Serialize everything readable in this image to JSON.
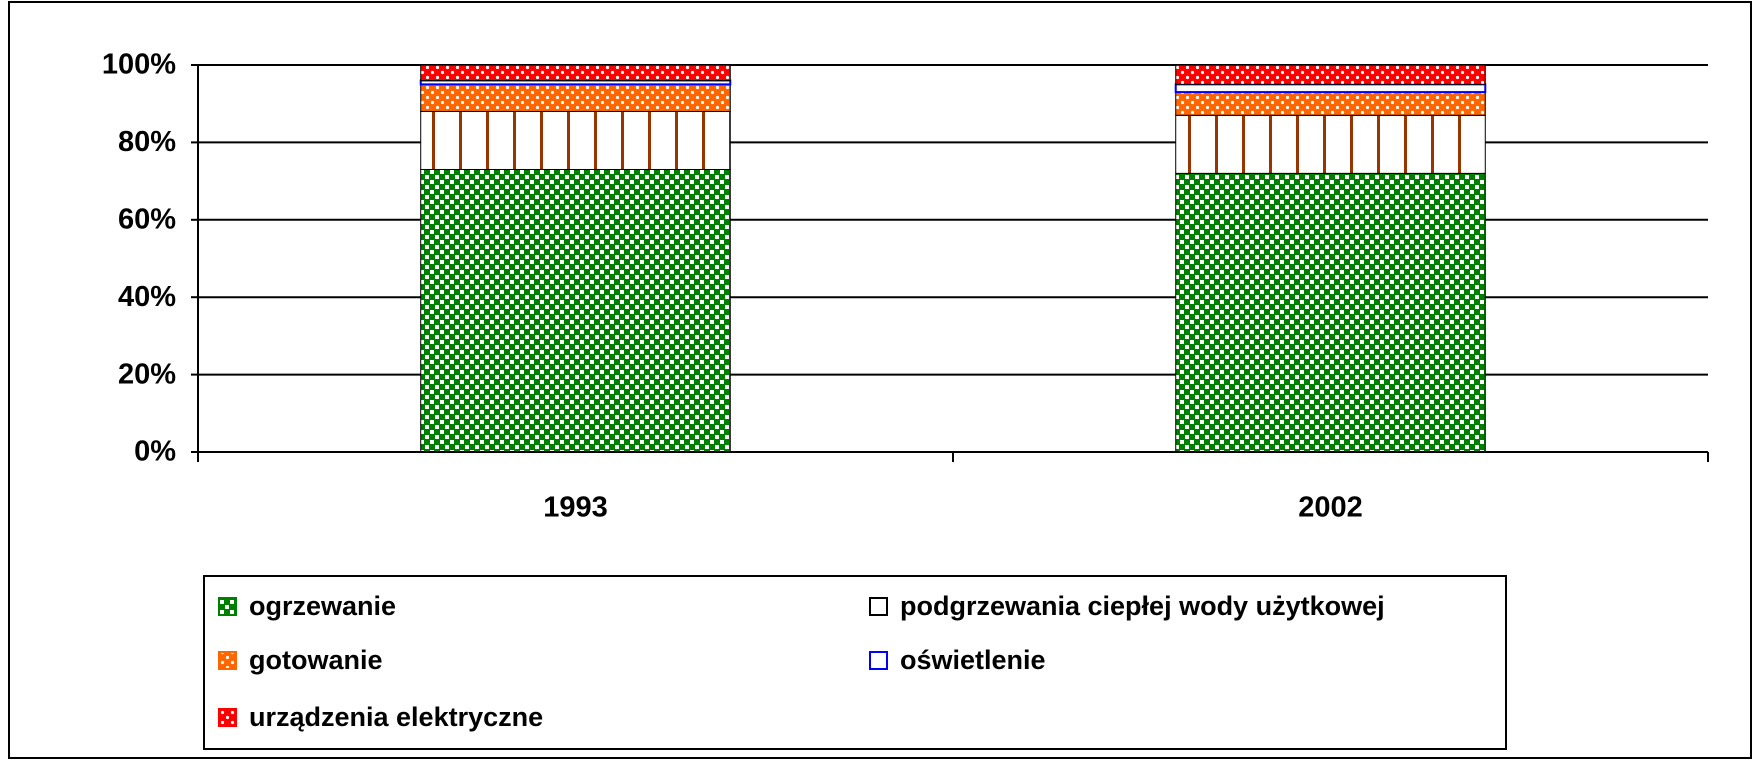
{
  "chart_data": {
    "type": "stacked_bar",
    "categories": [
      "1993",
      "2002"
    ],
    "series": [
      {
        "name": "ogrzewanie",
        "color": "#008000",
        "values": [
          73,
          72
        ]
      },
      {
        "name": "podgrzewania ciepłej wody użytkowej",
        "color": "#993300",
        "values": [
          15,
          15
        ]
      },
      {
        "name": "gotowanie",
        "color": "#ff6600",
        "values": [
          7,
          6
        ]
      },
      {
        "name": "oświetlenie",
        "color": "#0000ff",
        "values": [
          1,
          2
        ]
      },
      {
        "name": "urządzenia elektryczne",
        "color": "#ff0000",
        "values": [
          4,
          5
        ]
      }
    ],
    "ylim": [
      0,
      100
    ],
    "yticks": [
      {
        "value": 0,
        "label": "0%"
      },
      {
        "value": 20,
        "label": "20%"
      },
      {
        "value": 40,
        "label": "40%"
      },
      {
        "value": 60,
        "label": "60%"
      },
      {
        "value": 80,
        "label": "80%"
      },
      {
        "value": 100,
        "label": "100%"
      }
    ],
    "grid": true,
    "legend": "bottom"
  }
}
